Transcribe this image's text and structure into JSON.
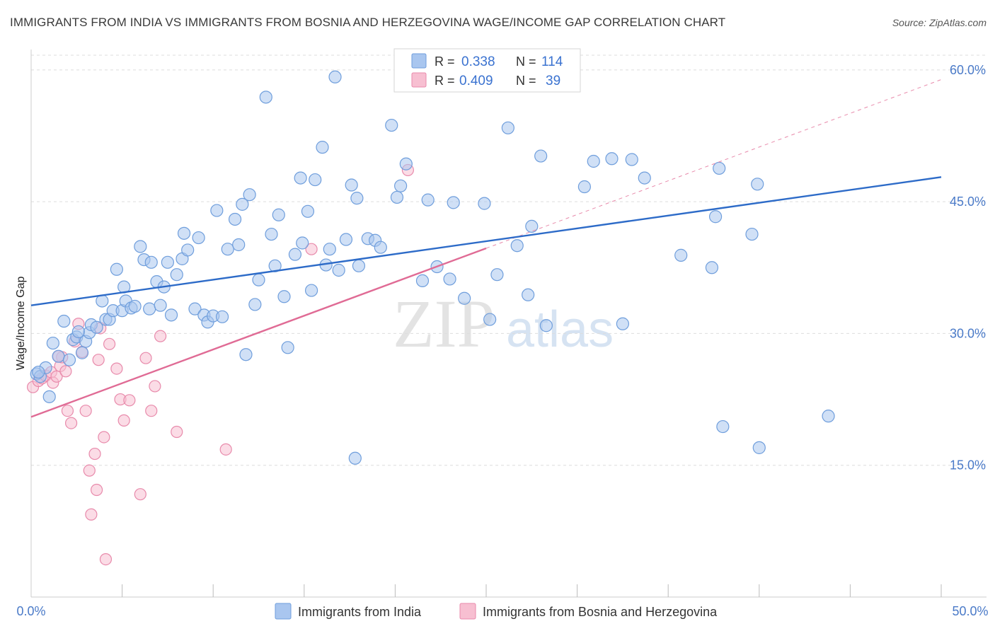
{
  "title": "IMMIGRANTS FROM INDIA VS IMMIGRANTS FROM BOSNIA AND HERZEGOVINA WAGE/INCOME GAP CORRELATION CHART",
  "source_label": "Source:",
  "source_site": "ZipAtlas.com",
  "watermark": {
    "zip": "ZIP",
    "atlas": "atlas"
  },
  "colors": {
    "india_fill": "#a9c6ef",
    "india_stroke": "#6f9edc",
    "india_line": "#2d6bc8",
    "bosnia_fill": "#f7bfd1",
    "bosnia_stroke": "#e88aab",
    "bosnia_line": "#e06b95",
    "tick_text": "#4a7ac8",
    "grid": "#dddddd"
  },
  "legend": {
    "r_label": "R =",
    "n_label": "N =",
    "india": {
      "r": "0.338",
      "n": "114"
    },
    "bosnia": {
      "r": "0.409",
      "n": "39"
    }
  },
  "chart_data": {
    "type": "scatter",
    "title": "IMMIGRANTS FROM INDIA VS IMMIGRANTS FROM BOSNIA AND HERZEGOVINA WAGE/INCOME GAP CORRELATION CHART",
    "xlabel": "",
    "ylabel": "Wage/Income Gap",
    "xlim": [
      0,
      50
    ],
    "ylim": [
      0,
      62
    ],
    "x_tick_labels": [
      "0.0%",
      "50.0%"
    ],
    "y_ticks": [
      15,
      30,
      45,
      60
    ],
    "y_tick_labels": [
      "15.0%",
      "30.0%",
      "45.0%",
      "60.0%"
    ],
    "legend_position": "top-center",
    "series": [
      {
        "name": "Immigrants from India",
        "trend": {
          "x0": 0,
          "y0": 33.2,
          "x1": 50,
          "y1": 47.8
        },
        "points": [
          [
            0.3,
            25.4
          ],
          [
            0.5,
            25.1
          ],
          [
            0.8,
            26.1
          ],
          [
            0.4,
            25.6
          ],
          [
            1.0,
            22.8
          ],
          [
            1.2,
            28.9
          ],
          [
            1.5,
            27.4
          ],
          [
            1.8,
            31.4
          ],
          [
            2.1,
            27.0
          ],
          [
            2.3,
            29.3
          ],
          [
            2.5,
            29.6
          ],
          [
            2.8,
            27.8
          ],
          [
            3.0,
            29.1
          ],
          [
            3.2,
            30.1
          ],
          [
            3.3,
            31.0
          ],
          [
            3.6,
            30.7
          ],
          [
            3.9,
            33.7
          ],
          [
            4.1,
            31.6
          ],
          [
            4.3,
            31.6
          ],
          [
            4.5,
            32.6
          ],
          [
            4.7,
            37.3
          ],
          [
            5.0,
            32.6
          ],
          [
            5.1,
            35.3
          ],
          [
            5.2,
            33.7
          ],
          [
            5.5,
            32.9
          ],
          [
            5.7,
            33.1
          ],
          [
            6.0,
            39.9
          ],
          [
            6.2,
            38.4
          ],
          [
            6.5,
            32.8
          ],
          [
            6.6,
            38.1
          ],
          [
            6.9,
            35.9
          ],
          [
            7.1,
            33.2
          ],
          [
            7.3,
            35.3
          ],
          [
            7.5,
            38.1
          ],
          [
            7.7,
            32.1
          ],
          [
            8.0,
            36.7
          ],
          [
            8.3,
            38.5
          ],
          [
            8.4,
            41.4
          ],
          [
            8.6,
            39.5
          ],
          [
            9.0,
            32.8
          ],
          [
            9.2,
            40.9
          ],
          [
            9.5,
            32.1
          ],
          [
            9.7,
            31.3
          ],
          [
            10.0,
            32.0
          ],
          [
            10.2,
            44.0
          ],
          [
            10.5,
            31.9
          ],
          [
            10.8,
            39.6
          ],
          [
            11.2,
            43.0
          ],
          [
            11.4,
            40.1
          ],
          [
            11.6,
            44.7
          ],
          [
            11.8,
            27.6
          ],
          [
            12.0,
            45.8
          ],
          [
            12.3,
            33.3
          ],
          [
            12.5,
            36.1
          ],
          [
            12.9,
            56.9
          ],
          [
            13.2,
            41.3
          ],
          [
            13.4,
            37.7
          ],
          [
            13.6,
            43.5
          ],
          [
            13.9,
            34.2
          ],
          [
            14.1,
            28.4
          ],
          [
            14.5,
            39.0
          ],
          [
            14.8,
            47.7
          ],
          [
            14.9,
            40.3
          ],
          [
            15.2,
            43.9
          ],
          [
            15.4,
            34.9
          ],
          [
            15.6,
            47.5
          ],
          [
            16.0,
            51.2
          ],
          [
            16.2,
            37.8
          ],
          [
            16.4,
            39.6
          ],
          [
            16.7,
            59.2
          ],
          [
            16.9,
            37.2
          ],
          [
            17.3,
            40.7
          ],
          [
            17.6,
            46.9
          ],
          [
            17.8,
            15.8
          ],
          [
            17.9,
            45.4
          ],
          [
            18.0,
            37.7
          ],
          [
            18.5,
            40.8
          ],
          [
            18.9,
            40.6
          ],
          [
            19.2,
            39.8
          ],
          [
            19.8,
            53.7
          ],
          [
            20.1,
            45.5
          ],
          [
            20.3,
            46.8
          ],
          [
            20.6,
            49.3
          ],
          [
            21.5,
            36.0
          ],
          [
            21.8,
            45.2
          ],
          [
            22.3,
            37.6
          ],
          [
            23.0,
            36.2
          ],
          [
            23.2,
            44.9
          ],
          [
            23.8,
            34.0
          ],
          [
            24.9,
            44.8
          ],
          [
            25.2,
            31.6
          ],
          [
            25.6,
            36.7
          ],
          [
            26.2,
            53.4
          ],
          [
            26.7,
            40.0
          ],
          [
            27.3,
            34.4
          ],
          [
            27.5,
            42.2
          ],
          [
            28.0,
            50.2
          ],
          [
            28.3,
            30.9
          ],
          [
            30.4,
            46.7
          ],
          [
            30.9,
            49.6
          ],
          [
            31.9,
            49.9
          ],
          [
            32.5,
            31.1
          ],
          [
            33.0,
            49.8
          ],
          [
            33.7,
            47.7
          ],
          [
            35.7,
            38.9
          ],
          [
            37.4,
            37.5
          ],
          [
            37.6,
            43.3
          ],
          [
            37.8,
            48.8
          ],
          [
            38.0,
            19.4
          ],
          [
            39.6,
            41.3
          ],
          [
            39.9,
            47.0
          ],
          [
            40.0,
            17.0
          ],
          [
            43.8,
            20.6
          ],
          [
            2.6,
            30.2
          ]
        ]
      },
      {
        "name": "Immigrants from Bosnia and Herzegovina",
        "trend": {
          "x0": 0,
          "y0": 20.5,
          "x1": 25,
          "y1": 39.7
        },
        "trend_extension": {
          "x0": 25,
          "y0": 39.7,
          "x1": 50,
          "y1": 58.9
        },
        "points": [
          [
            0.1,
            23.9
          ],
          [
            0.4,
            24.6
          ],
          [
            0.6,
            24.9
          ],
          [
            0.8,
            25.2
          ],
          [
            1.1,
            25.6
          ],
          [
            1.2,
            24.4
          ],
          [
            1.4,
            25.1
          ],
          [
            1.6,
            26.3
          ],
          [
            1.7,
            27.3
          ],
          [
            1.9,
            25.7
          ],
          [
            2.0,
            21.2
          ],
          [
            2.2,
            19.8
          ],
          [
            2.4,
            29.1
          ],
          [
            2.6,
            31.1
          ],
          [
            2.8,
            27.9
          ],
          [
            3.0,
            21.2
          ],
          [
            3.2,
            14.4
          ],
          [
            3.3,
            9.4
          ],
          [
            3.5,
            16.3
          ],
          [
            3.6,
            12.2
          ],
          [
            3.7,
            27.0
          ],
          [
            3.8,
            30.6
          ],
          [
            4.0,
            18.2
          ],
          [
            4.1,
            4.3
          ],
          [
            4.3,
            28.8
          ],
          [
            4.7,
            26.0
          ],
          [
            4.9,
            22.5
          ],
          [
            5.1,
            20.1
          ],
          [
            5.4,
            22.4
          ],
          [
            6.0,
            11.7
          ],
          [
            6.3,
            27.2
          ],
          [
            6.6,
            21.2
          ],
          [
            6.8,
            24.0
          ],
          [
            7.1,
            29.7
          ],
          [
            8.0,
            18.8
          ],
          [
            10.7,
            16.8
          ],
          [
            15.4,
            39.6
          ],
          [
            20.7,
            48.6
          ],
          [
            1.5,
            27.4
          ]
        ]
      }
    ]
  },
  "bottom_legend": {
    "india_label": "Immigrants from India",
    "bosnia_label": "Immigrants from Bosnia and Herzegovina"
  }
}
